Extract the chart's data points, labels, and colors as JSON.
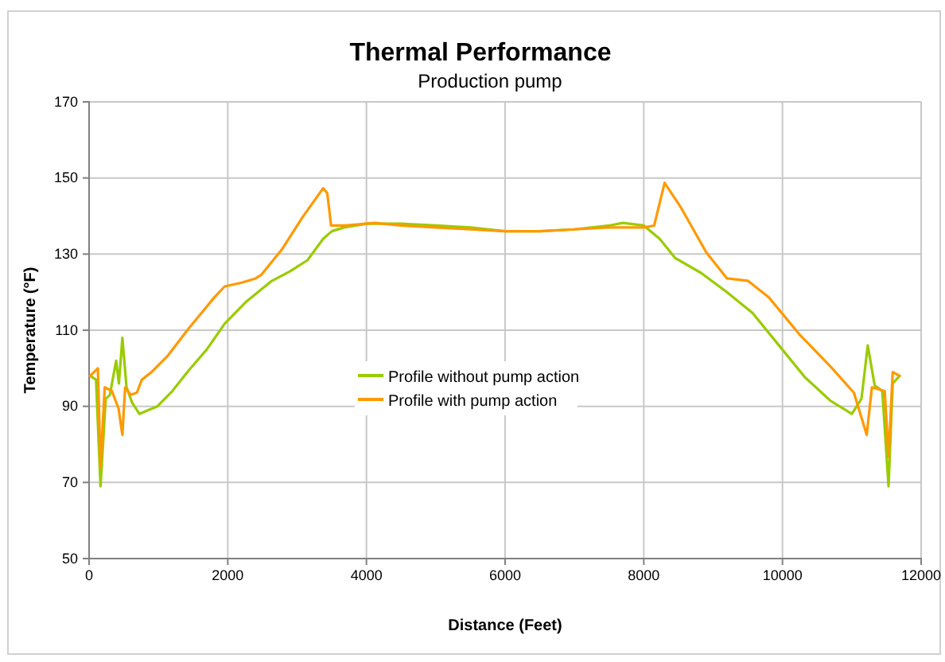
{
  "chart_data": {
    "type": "line",
    "title": "Thermal Performance",
    "subtitle": "Production pump",
    "xlabel": "Distance (Feet)",
    "ylabel": "Temperature (°F)",
    "xlim": [
      0,
      12000
    ],
    "xticks": [
      0,
      2000,
      4000,
      6000,
      8000,
      10000,
      12000
    ],
    "ylim": [
      50,
      170
    ],
    "yticks": [
      50,
      70,
      90,
      110,
      130,
      150,
      170
    ],
    "grid": true,
    "legend": "center",
    "marker": "none",
    "line_style": "solid",
    "series": [
      {
        "name": "Profile without pump action",
        "color": "#99cc00",
        "x": [
          15,
          100,
          165,
          240,
          300,
          390,
          430,
          480,
          540,
          620,
          725,
          850,
          985,
          1200,
          1430,
          1700,
          1955,
          2255,
          2630,
          2900,
          3150,
          3375,
          3500,
          3675,
          4000,
          4500,
          5000,
          5500,
          6000,
          6500,
          7000,
          7500,
          7700,
          8000,
          8230,
          8450,
          8830,
          9200,
          9570,
          9950,
          10320,
          10690,
          11000,
          11140,
          11230,
          11330,
          11440,
          11530,
          11590,
          11690
        ],
        "values": [
          98,
          97,
          69,
          92,
          93,
          102,
          96,
          108,
          95,
          91,
          88,
          89,
          90,
          94,
          99.3,
          105,
          111.7,
          117.3,
          122.9,
          125.5,
          128.4,
          134,
          136,
          137,
          138,
          138,
          137.5,
          137,
          136,
          136,
          136.5,
          137.5,
          138.2,
          137.5,
          134,
          129,
          125,
          120,
          114.5,
          106,
          97.7,
          91.5,
          88,
          92,
          106,
          95.5,
          94,
          69,
          96,
          98
        ]
      },
      {
        "name": "Profile with pump action",
        "color": "#ff9900",
        "x": [
          15,
          127,
          165,
          225,
          330,
          425,
          480,
          520,
          600,
          690,
          760,
          900,
          1135,
          1430,
          1810,
          1955,
          2200,
          2400,
          2480,
          2780,
          3075,
          3375,
          3435,
          3490,
          3700,
          4120,
          4500,
          5000,
          5500,
          6000,
          6500,
          7000,
          7500,
          8000,
          8150,
          8300,
          8530,
          8900,
          9200,
          9500,
          9800,
          10240,
          10690,
          11030,
          11215,
          11290,
          11475,
          11530,
          11590,
          11690
        ],
        "values": [
          98,
          100,
          74,
          95,
          94,
          89.4,
          82.5,
          95,
          93,
          93.6,
          97,
          99,
          103.3,
          110.3,
          118.7,
          121.5,
          122.5,
          123.6,
          124.5,
          131.2,
          139.6,
          147.3,
          146,
          137.5,
          137.5,
          138.2,
          137.5,
          137,
          136.5,
          136,
          136,
          136.5,
          137,
          137,
          137.5,
          148.7,
          142.4,
          130.5,
          123.6,
          123,
          118.7,
          109,
          100.5,
          93.6,
          82.5,
          95,
          94,
          76.8,
          99,
          98
        ]
      }
    ]
  }
}
